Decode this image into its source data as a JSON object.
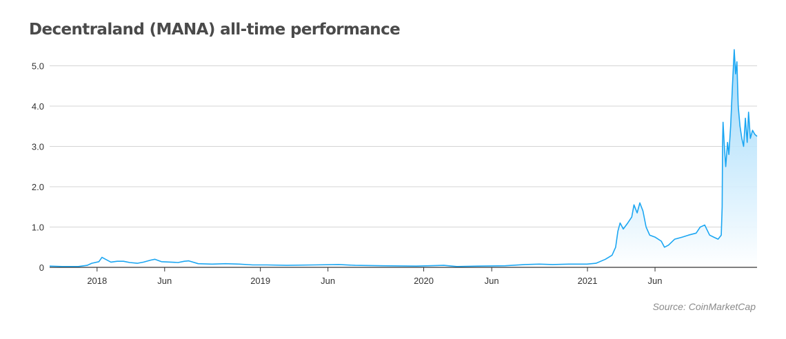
{
  "title": "Decentraland (MANA) all-time performance",
  "source": "Source: CoinMarketCap",
  "colors": {
    "line": "#1ba6f2",
    "area_top": "#8fd3fa",
    "grid": "#d4d4d4",
    "axis": "#333333"
  },
  "chart_data": {
    "type": "area",
    "xlabel": "",
    "ylabel": "",
    "ylim": [
      0,
      5.5
    ],
    "xlim": [
      "2017-09-17",
      "2022-01-15"
    ],
    "yticks": [
      {
        "value": 0,
        "label": "0"
      },
      {
        "value": 1,
        "label": "1.0"
      },
      {
        "value": 2,
        "label": "2.0"
      },
      {
        "value": 3,
        "label": "3.0"
      },
      {
        "value": 4,
        "label": "4.0"
      },
      {
        "value": 5,
        "label": "5.0"
      }
    ],
    "xticks": [
      {
        "date": "2018-01-01",
        "label": "2018"
      },
      {
        "date": "2018-06-01",
        "label": "Jun"
      },
      {
        "date": "2019-01-01",
        "label": "2019"
      },
      {
        "date": "2019-06-01",
        "label": "Jun"
      },
      {
        "date": "2020-01-01",
        "label": "2020"
      },
      {
        "date": "2020-06-01",
        "label": "Jun"
      },
      {
        "date": "2021-01-01",
        "label": "2021"
      },
      {
        "date": "2021-06-01",
        "label": "Jun"
      }
    ],
    "grid": true,
    "series": [
      {
        "values": [
          [
            "2017-09-17",
            0.03
          ],
          [
            "2017-10-15",
            0.02
          ],
          [
            "2017-11-20",
            0.02
          ],
          [
            "2017-12-10",
            0.05
          ],
          [
            "2017-12-20",
            0.1
          ],
          [
            "2018-01-05",
            0.14
          ],
          [
            "2018-01-12",
            0.25
          ],
          [
            "2018-01-20",
            0.2
          ],
          [
            "2018-02-01",
            0.13
          ],
          [
            "2018-02-15",
            0.15
          ],
          [
            "2018-03-01",
            0.15
          ],
          [
            "2018-03-15",
            0.12
          ],
          [
            "2018-04-01",
            0.1
          ],
          [
            "2018-04-15",
            0.13
          ],
          [
            "2018-05-01",
            0.18
          ],
          [
            "2018-05-10",
            0.2
          ],
          [
            "2018-05-25",
            0.14
          ],
          [
            "2018-06-15",
            0.13
          ],
          [
            "2018-07-01",
            0.12
          ],
          [
            "2018-07-15",
            0.15
          ],
          [
            "2018-07-25",
            0.16
          ],
          [
            "2018-08-15",
            0.09
          ],
          [
            "2018-09-15",
            0.08
          ],
          [
            "2018-10-15",
            0.09
          ],
          [
            "2018-11-15",
            0.08
          ],
          [
            "2018-12-15",
            0.06
          ],
          [
            "2019-01-15",
            0.06
          ],
          [
            "2019-03-01",
            0.05
          ],
          [
            "2019-05-01",
            0.06
          ],
          [
            "2019-06-25",
            0.07
          ],
          [
            "2019-08-01",
            0.05
          ],
          [
            "2019-10-01",
            0.04
          ],
          [
            "2019-12-15",
            0.03
          ],
          [
            "2020-02-15",
            0.05
          ],
          [
            "2020-03-15",
            0.02
          ],
          [
            "2020-05-01",
            0.03
          ],
          [
            "2020-07-01",
            0.04
          ],
          [
            "2020-08-15",
            0.07
          ],
          [
            "2020-09-15",
            0.08
          ],
          [
            "2020-10-15",
            0.07
          ],
          [
            "2020-11-20",
            0.08
          ],
          [
            "2020-12-31",
            0.08
          ],
          [
            "2021-01-20",
            0.1
          ],
          [
            "2021-02-10",
            0.2
          ],
          [
            "2021-02-25",
            0.3
          ],
          [
            "2021-03-05",
            0.5
          ],
          [
            "2021-03-10",
            0.9
          ],
          [
            "2021-03-15",
            1.1
          ],
          [
            "2021-03-22",
            0.95
          ],
          [
            "2021-04-01",
            1.1
          ],
          [
            "2021-04-10",
            1.25
          ],
          [
            "2021-04-15",
            1.55
          ],
          [
            "2021-04-22",
            1.35
          ],
          [
            "2021-04-28",
            1.6
          ],
          [
            "2021-05-05",
            1.4
          ],
          [
            "2021-05-12",
            1.0
          ],
          [
            "2021-05-20",
            0.8
          ],
          [
            "2021-06-01",
            0.75
          ],
          [
            "2021-06-15",
            0.65
          ],
          [
            "2021-06-22",
            0.5
          ],
          [
            "2021-07-01",
            0.55
          ],
          [
            "2021-07-15",
            0.7
          ],
          [
            "2021-08-01",
            0.75
          ],
          [
            "2021-08-15",
            0.8
          ],
          [
            "2021-09-01",
            0.85
          ],
          [
            "2021-09-10",
            1.0
          ],
          [
            "2021-09-20",
            1.05
          ],
          [
            "2021-10-01",
            0.8
          ],
          [
            "2021-10-10",
            0.75
          ],
          [
            "2021-10-20",
            0.7
          ],
          [
            "2021-10-27",
            0.8
          ],
          [
            "2021-10-29",
            1.5
          ],
          [
            "2021-10-30",
            3.1
          ],
          [
            "2021-10-31",
            3.6
          ],
          [
            "2021-11-03",
            3.0
          ],
          [
            "2021-11-06",
            2.5
          ],
          [
            "2021-11-10",
            3.1
          ],
          [
            "2021-11-13",
            2.8
          ],
          [
            "2021-11-17",
            3.5
          ],
          [
            "2021-11-21",
            4.5
          ],
          [
            "2021-11-25",
            5.4
          ],
          [
            "2021-11-28",
            4.8
          ],
          [
            "2021-12-01",
            5.1
          ],
          [
            "2021-12-04",
            4.0
          ],
          [
            "2021-12-08",
            3.5
          ],
          [
            "2021-12-12",
            3.2
          ],
          [
            "2021-12-16",
            3.0
          ],
          [
            "2021-12-20",
            3.7
          ],
          [
            "2021-12-24",
            3.1
          ],
          [
            "2021-12-27",
            3.85
          ],
          [
            "2021-12-31",
            3.2
          ],
          [
            "2022-01-05",
            3.4
          ],
          [
            "2022-01-10",
            3.3
          ],
          [
            "2022-01-15",
            3.25
          ]
        ]
      }
    ]
  }
}
